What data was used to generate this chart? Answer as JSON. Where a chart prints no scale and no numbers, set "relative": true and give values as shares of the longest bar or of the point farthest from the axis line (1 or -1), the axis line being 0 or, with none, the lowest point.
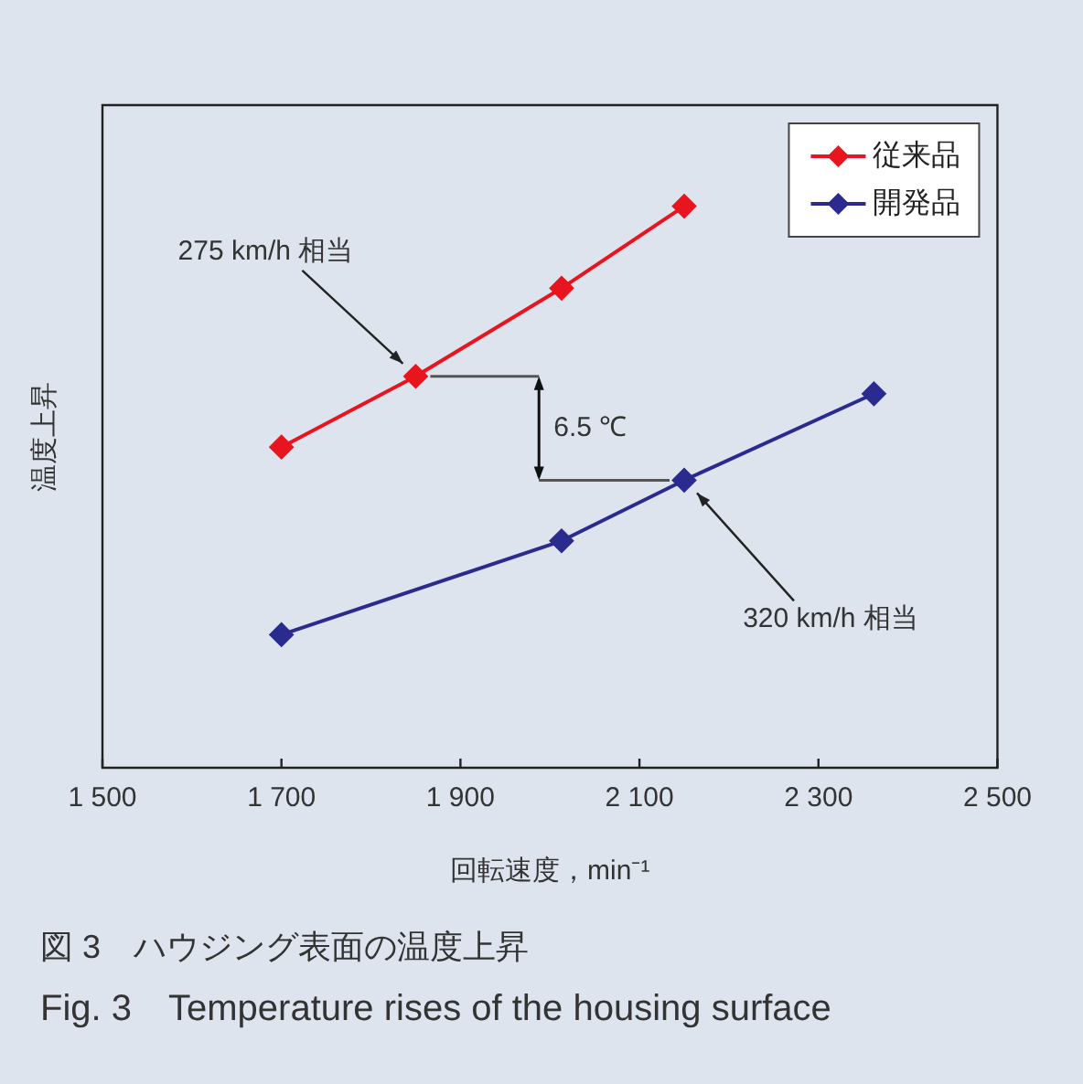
{
  "chart_data": {
    "type": "line",
    "title": "図 3　ハウジング表面の温度上昇",
    "subtitle": "Fig. 3　Temperature rises of the housing surface",
    "xlabel": "回転速度，min⁻¹",
    "ylabel": "温度上昇",
    "relative": true,
    "xlim": [
      1500,
      2500
    ],
    "xticks": [
      {
        "value": 1500,
        "label": "1 500"
      },
      {
        "value": 1700,
        "label": "1 700"
      },
      {
        "value": 1900,
        "label": "1 900"
      },
      {
        "value": 2100,
        "label": "2 100"
      },
      {
        "value": 2300,
        "label": "2 300"
      },
      {
        "value": 2500,
        "label": "2 500"
      }
    ],
    "series": [
      {
        "name": "従来品",
        "color": "#e8141e",
        "x": [
          1700,
          1850,
          2013,
          2150
        ],
        "values": [
          0.571,
          0.697,
          0.854,
          1
        ]
      },
      {
        "name": "開発品",
        "color": "#2b2b8f",
        "x": [
          1700,
          2013,
          2150,
          2362
        ],
        "values": [
          0.237,
          0.404,
          0.512,
          0.666
        ]
      }
    ],
    "annotations": [
      "275 km/h 相当",
      "320 km/h 相当",
      "6.5 ℃"
    ],
    "legend": "top right",
    "marker": "diamond",
    "line_style": "solid",
    "grid": false
  }
}
